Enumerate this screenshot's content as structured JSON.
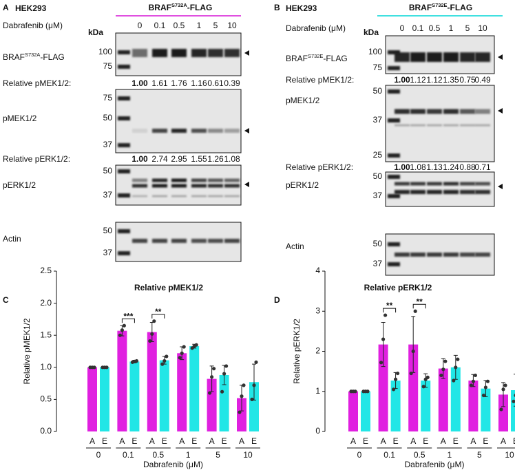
{
  "panel_a": {
    "letter": "A",
    "cell_line": "HEK293",
    "construct": {
      "base": "BRAF",
      "superscript": "S732A",
      "suffix": "-FLAG"
    },
    "treatment_label": "Dabrafenib (μM)",
    "doses": [
      "0",
      "0.1",
      "0.5",
      "1",
      "5",
      "10"
    ],
    "kda": "kDa",
    "blots": [
      {
        "label": null,
        "markers": [
          "100",
          "75"
        ]
      },
      {
        "label": "pMEK1/2",
        "markers": [
          "75",
          "50",
          "37"
        ]
      },
      {
        "label": "pERK1/2",
        "markers": [
          "50",
          "37"
        ]
      },
      {
        "label": "Actin",
        "markers": [
          "50",
          "37"
        ]
      }
    ],
    "quant": [
      {
        "label": "Relative pMEK1/2:",
        "values": [
          "1.00",
          "1.61",
          "1.76",
          "1.16",
          "0.61",
          "0.39"
        ]
      },
      {
        "label": "Relative pERK1/2:",
        "values": [
          "1.00",
          "2.74",
          "2.95",
          "1.55",
          "1.26",
          "1.08"
        ]
      }
    ]
  },
  "panel_b": {
    "letter": "B",
    "cell_line": "HEK293",
    "construct": {
      "base": "BRAF",
      "superscript": "S732E",
      "suffix": "-FLAG"
    },
    "treatment_label": "Dabrafenib (μM)",
    "doses": [
      "0",
      "0.1",
      "0.5",
      "1",
      "5",
      "10"
    ],
    "kda": "kDa",
    "blots": [
      {
        "label": null,
        "markers": [
          "100",
          "75"
        ]
      },
      {
        "label": "pMEK1/2",
        "markers": [
          "50",
          "37",
          "25"
        ]
      },
      {
        "label": "pERK1/2",
        "markers": [
          "50",
          "37"
        ]
      },
      {
        "label": "Actin",
        "markers": [
          "50",
          "37"
        ]
      }
    ],
    "quant": [
      {
        "label": "Relative pMEK1/2:",
        "values": [
          "1.00",
          "1.12",
          "1.12",
          "1.35",
          "0.75",
          "0.49"
        ]
      },
      {
        "label": "Relative pERK1/2:",
        "values": [
          "1.00",
          "1.08",
          "1.13",
          "1.24",
          "0.88",
          "0.71"
        ]
      }
    ]
  },
  "chart_data": [
    {
      "type": "bar",
      "panel": "C",
      "title": "Relative pMEK1/2",
      "y_label": "Relative pMEK1/2",
      "x_label": "Dabrafenib (μM)",
      "categories": [
        "0",
        "0.1",
        "0.5",
        "1",
        "5",
        "10"
      ],
      "ylim": [
        0,
        2.5
      ],
      "yticks": [
        {
          "value": 0,
          "label": "0.0"
        },
        0.5,
        {
          "value": 1,
          "label": "1.0"
        },
        1.5,
        {
          "value": 2,
          "label": "2.0"
        },
        2.5
      ],
      "series": [
        {
          "name": "A",
          "color": "#e020e0",
          "values": [
            1.0,
            1.57,
            1.55,
            1.22,
            0.82,
            0.52
          ],
          "errors": [
            0.01,
            0.08,
            0.15,
            0.1,
            0.2,
            0.2
          ],
          "points": [
            [
              1,
              1,
              1
            ],
            [
              1.5,
              1.58,
              1.65
            ],
            [
              1.41,
              1.52,
              1.72
            ],
            [
              1.15,
              1.22,
              1.32
            ],
            [
              0.6,
              0.85,
              0.98
            ],
            [
              0.3,
              0.55,
              0.72
            ]
          ]
        },
        {
          "name": "E",
          "color": "#22e6e6",
          "values": [
            1.0,
            1.09,
            1.11,
            1.33,
            0.88,
            0.77
          ],
          "errors": [
            0.01,
            0.02,
            0.06,
            0.03,
            0.15,
            0.28
          ],
          "points": [
            [
              1,
              1,
              1
            ],
            [
              1.08,
              1.09,
              1.1
            ],
            [
              1.05,
              1.1,
              1.17
            ],
            [
              1.3,
              1.33,
              1.35
            ],
            [
              0.62,
              0.9,
              1.02
            ],
            [
              0.5,
              0.72,
              1.08
            ]
          ]
        }
      ],
      "annotations": [
        {
          "label": "***",
          "category": "0.1"
        },
        {
          "label": "**",
          "category": "0.5"
        }
      ]
    },
    {
      "type": "bar",
      "panel": "D",
      "title": "Relative pERK1/2",
      "y_label": "Relative pERK1/2",
      "x_label": "Dabrafenib (μM)",
      "categories": [
        "0",
        "0.1",
        "0.5",
        "1",
        "5",
        "10"
      ],
      "ylim": [
        0,
        4
      ],
      "yticks": [
        0,
        1,
        2,
        3,
        4
      ],
      "series": [
        {
          "name": "A",
          "color": "#e020e0",
          "values": [
            1.0,
            2.17,
            2.17,
            1.57,
            1.27,
            0.92
          ],
          "errors": [
            0.02,
            0.55,
            0.7,
            0.25,
            0.15,
            0.3
          ],
          "points": [
            [
              1,
              1,
              1
            ],
            [
              1.72,
              2.3,
              2.9
            ],
            [
              1.45,
              2.0,
              3.0
            ],
            [
              1.4,
              1.55,
              1.75
            ],
            [
              1.15,
              1.25,
              1.4
            ],
            [
              0.55,
              1.05,
              1.15
            ]
          ]
        },
        {
          "name": "E",
          "color": "#22e6e6",
          "values": [
            1.0,
            1.27,
            1.27,
            1.6,
            1.07,
            1.03
          ],
          "errors": [
            0.02,
            0.2,
            0.17,
            0.3,
            0.2,
            0.4
          ],
          "points": [
            [
              1,
              1,
              1
            ],
            [
              1.05,
              1.3,
              1.45
            ],
            [
              1.12,
              1.3,
              1.35
            ],
            [
              1.27,
              1.6,
              1.8
            ],
            [
              0.9,
              1.1,
              1.25
            ],
            [
              0.75,
              0.9,
              1.35
            ]
          ]
        }
      ],
      "annotations": [
        {
          "label": "**",
          "category": "0.1"
        },
        {
          "label": "**",
          "category": "0.5"
        }
      ]
    }
  ]
}
